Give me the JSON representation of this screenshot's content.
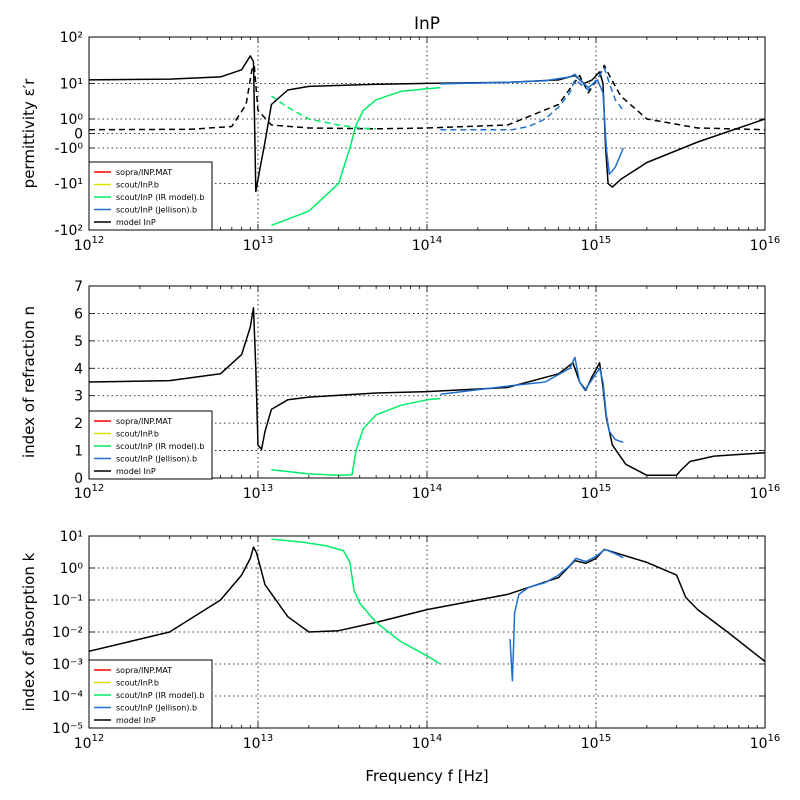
{
  "title": "InP",
  "xlabel": "Frequency f [Hz]",
  "x_ticks": [
    {
      "base": "10",
      "exp": "12"
    },
    {
      "base": "10",
      "exp": "13"
    },
    {
      "base": "10",
      "exp": "14"
    },
    {
      "base": "10",
      "exp": "15"
    },
    {
      "base": "10",
      "exp": "16"
    }
  ],
  "colors": {
    "sopra": "#ff0000",
    "scout_b": "#dddd00",
    "scout_ir": "#00ee66",
    "scout_jellison": "#1f6fd0",
    "model": "#000000"
  },
  "legend": [
    {
      "label": "sopra/INP.MAT",
      "color": "#ff0000"
    },
    {
      "label": "scout/InP.b",
      "color": "#dddd00"
    },
    {
      "label": "scout/InP (IR model).b",
      "color": "#00ee66"
    },
    {
      "label": "scout/InP (Jellison).b",
      "color": "#1f6fd0"
    },
    {
      "label": "model InP",
      "color": "#000000"
    }
  ],
  "chart_data": [
    {
      "type": "line",
      "ylabel": "permittivity ε′r",
      "x_scale": "log",
      "y_scale": "symlog",
      "xlim": [
        1000000000000.0,
        1e+16
      ],
      "ylim": [
        -100,
        100
      ],
      "y_tick_labels": [
        "10²",
        "10¹",
        "10⁰",
        "0",
        "-10⁰",
        "-10¹",
        "-10²"
      ],
      "legend_position": "lower-left",
      "grid": true,
      "series": [
        {
          "name": "model InP",
          "color": "#000000",
          "style": "solid",
          "x": [
            1000000000000.0,
            3000000000000.0,
            6000000000000.0,
            8000000000000.0,
            9000000000000.0,
            9400000000000.0,
            9700000000000.0,
            10200000000000.0,
            11000000000000.0,
            12000000000000.0,
            15000000000000.0,
            20000000000000.0,
            50000000000000.0,
            100000000000000.0,
            300000000000000.0,
            600000000000000.0,
            750000000000000.0,
            850000000000000.0,
            950000000000000.0,
            1050000000000000.0,
            1100000000000000.0,
            1140000000000000.0,
            1180000000000000.0,
            1250000000000000.0,
            1400000000000000.0,
            2000000000000000.0,
            4000000000000000.0,
            1e+16
          ],
          "y": [
            12,
            12.5,
            14,
            20,
            40,
            30,
            -15,
            -5,
            -0.5,
            3,
            7,
            8.5,
            9.5,
            10,
            10.5,
            12,
            15,
            10,
            12,
            18,
            10,
            -1,
            -10,
            -12,
            -8,
            -3,
            -0.5,
            1
          ]
        },
        {
          "name": "model InP (ε″)",
          "color": "#000000",
          "style": "dashed",
          "x": [
            1000000000000.0,
            4000000000000.0,
            7000000000000.0,
            8500000000000.0,
            9200000000000.0,
            9500000000000.0,
            10000000000000.0,
            12000000000000.0,
            20000000000000.0,
            50000000000000.0,
            100000000000000.0,
            300000000000000.0,
            600000000000000.0,
            800000000000000.0,
            900000000000000.0,
            1050000000000000.0,
            1120000000000000.0,
            1200000000000000.0,
            1400000000000000.0,
            2000000000000000.0,
            4000000000000000.0,
            1e+16
          ],
          "y": [
            0.2,
            0.22,
            0.4,
            3,
            20,
            25,
            2,
            0.5,
            0.3,
            0.25,
            0.3,
            0.5,
            3,
            15,
            6,
            15,
            25,
            15,
            5,
            1,
            0.3,
            0.2
          ]
        },
        {
          "name": "scout/InP (IR model).b",
          "color": "#00ee66",
          "style": "solid",
          "x": [
            12000000000000.0,
            20000000000000.0,
            30000000000000.0,
            35000000000000.0,
            38000000000000.0,
            42000000000000.0,
            50000000000000.0,
            70000000000000.0,
            100000000000000.0,
            120000000000000.0
          ],
          "y": [
            -80,
            -40,
            -10,
            -1,
            0.5,
            2,
            4,
            6.5,
            7.5,
            8
          ]
        },
        {
          "name": "scout/InP (IR model).b (ε″)",
          "color": "#00ee66",
          "style": "dashed",
          "x": [
            12000000000000.0,
            15000000000000.0,
            20000000000000.0,
            30000000000000.0,
            40000000000000.0,
            50000000000000.0
          ],
          "y": [
            5,
            2.5,
            1,
            0.5,
            0.3,
            0.25
          ]
        },
        {
          "name": "scout/InP (Jellison).b",
          "color": "#1f6fd0",
          "style": "solid",
          "x": [
            120000000000000.0,
            300000000000000.0,
            500000000000000.0,
            700000000000000.0,
            750000000000000.0,
            800000000000000.0,
            900000000000000.0,
            1020000000000000.0,
            1100000000000000.0,
            1150000000000000.0,
            1200000000000000.0,
            1300000000000000.0,
            1450000000000000.0
          ],
          "y": [
            9.7,
            10.5,
            11.5,
            14,
            16,
            12,
            8,
            12,
            6,
            -1,
            -6,
            -4,
            -1
          ]
        },
        {
          "name": "scout/InP (Jellison).b (ε″)",
          "color": "#1f6fd0",
          "style": "dashed",
          "x": [
            120000000000000.0,
            320000000000000.0,
            400000000000000.0,
            500000000000000.0,
            600000000000000.0,
            700000000000000.0,
            750000000000000.0,
            800000000000000.0,
            900000000000000.0,
            1050000000000000.0,
            1120000000000000.0,
            1200000000000000.0,
            1300000000000000.0,
            1450000000000000.0
          ],
          "y": [
            0.2,
            0.2,
            0.4,
            1,
            2.5,
            6,
            12,
            10,
            7,
            15,
            22,
            10,
            4,
            2
          ]
        }
      ]
    },
    {
      "type": "line",
      "ylabel": "index of refraction n",
      "x_scale": "log",
      "y_scale": "linear",
      "xlim": [
        1000000000000.0,
        1e+16
      ],
      "ylim": [
        0,
        7
      ],
      "y_ticks": [
        0,
        1,
        2,
        3,
        4,
        5,
        6,
        7
      ],
      "legend_position": "lower-left",
      "grid": true,
      "series": [
        {
          "name": "model InP",
          "color": "#000000",
          "style": "solid",
          "x": [
            1000000000000.0,
            3000000000000.0,
            6000000000000.0,
            8000000000000.0,
            9000000000000.0,
            9400000000000.0,
            9700000000000.0,
            10000000000000.0,
            10500000000000.0,
            11000000000000.0,
            12000000000000.0,
            15000000000000.0,
            20000000000000.0,
            50000000000000.0,
            100000000000000.0,
            300000000000000.0,
            600000000000000.0,
            730000000000000.0,
            800000000000000.0,
            870000000000000.0,
            950000000000000.0,
            1050000000000000.0,
            1100000000000000.0,
            1150000000000000.0,
            1250000000000000.0,
            1500000000000000.0,
            2000000000000000.0,
            3000000000000000.0,
            3200000000000000.0,
            3600000000000000.0,
            5000000000000000.0,
            1e+16
          ],
          "y": [
            3.5,
            3.55,
            3.8,
            4.5,
            5.5,
            6.2,
            4,
            1.2,
            1.05,
            1.7,
            2.5,
            2.85,
            2.95,
            3.1,
            3.15,
            3.3,
            3.8,
            4.2,
            3.5,
            3.2,
            3.7,
            4.2,
            3.3,
            2.2,
            1.2,
            0.5,
            0.1,
            0.1,
            0.3,
            0.6,
            0.8,
            0.92
          ]
        },
        {
          "name": "scout/InP (IR model).b",
          "color": "#00ee66",
          "style": "solid",
          "x": [
            12000000000000.0,
            20000000000000.0,
            30000000000000.0,
            36000000000000.0,
            38000000000000.0,
            42000000000000.0,
            50000000000000.0,
            70000000000000.0,
            100000000000000.0,
            120000000000000.0
          ],
          "y": [
            0.3,
            0.15,
            0.1,
            0.12,
            1,
            1.8,
            2.3,
            2.65,
            2.85,
            2.9
          ]
        },
        {
          "name": "scout/InP (Jellison).b",
          "color": "#1f6fd0",
          "style": "solid",
          "x": [
            120000000000000.0,
            300000000000000.0,
            500000000000000.0,
            700000000000000.0,
            750000000000000.0,
            800000000000000.0,
            860000000000000.0,
            950000000000000.0,
            1050000000000000.0,
            1100000000000000.0,
            1150000000000000.0,
            1200000000000000.0,
            1300000000000000.0,
            1450000000000000.0
          ],
          "y": [
            3.05,
            3.35,
            3.5,
            4.0,
            4.4,
            3.5,
            3.2,
            3.6,
            4.0,
            3.5,
            2.3,
            1.7,
            1.4,
            1.3
          ]
        }
      ]
    },
    {
      "type": "line",
      "ylabel": "index of absorption k",
      "x_scale": "log",
      "y_scale": "log",
      "xlim": [
        1000000000000.0,
        1e+16
      ],
      "ylim": [
        1e-05,
        10
      ],
      "y_tick_labels": [
        "10¹",
        "10⁰",
        "10⁻¹",
        "10⁻²",
        "10⁻³",
        "10⁻⁴",
        "10⁻⁵"
      ],
      "legend_position": "lower-left",
      "grid": true,
      "series": [
        {
          "name": "model InP",
          "color": "#000000",
          "style": "solid",
          "x": [
            1000000000000.0,
            3000000000000.0,
            6000000000000.0,
            8000000000000.0,
            9000000000000.0,
            9400000000000.0,
            9800000000000.0,
            11000000000000.0,
            15000000000000.0,
            20000000000000.0,
            30000000000000.0,
            50000000000000.0,
            100000000000000.0,
            300000000000000.0,
            600000000000000.0,
            750000000000000.0,
            870000000000000.0,
            1000000000000000.0,
            1120000000000000.0,
            1300000000000000.0,
            2000000000000000.0,
            3000000000000000.0,
            3400000000000000.0,
            4000000000000000.0,
            6000000000000000.0,
            1e+16
          ],
          "y": [
            0.0025,
            0.01,
            0.1,
            0.6,
            2,
            4.5,
            3,
            0.3,
            0.03,
            0.01,
            0.011,
            0.02,
            0.05,
            0.15,
            0.5,
            1.7,
            1.4,
            2,
            3.8,
            3,
            1.5,
            0.6,
            0.12,
            0.05,
            0.01,
            0.0012
          ]
        },
        {
          "name": "scout/InP (IR model).b",
          "color": "#00ee66",
          "style": "solid",
          "x": [
            12000000000000.0,
            18000000000000.0,
            25000000000000.0,
            32000000000000.0,
            35000000000000.0,
            37000000000000.0,
            40000000000000.0,
            50000000000000.0,
            70000000000000.0,
            100000000000000.0,
            120000000000000.0
          ],
          "y": [
            8,
            6.5,
            5,
            3.5,
            1.5,
            0.2,
            0.08,
            0.02,
            0.005,
            0.0018,
            0.001
          ]
        },
        {
          "name": "scout/InP (Jellison).b",
          "color": "#1f6fd0",
          "style": "solid",
          "x": [
            310000000000000.0,
            320000000000000.0,
            325000000000000.0,
            330000000000000.0,
            350000000000000.0,
            400000000000000.0,
            500000000000000.0,
            600000000000000.0,
            700000000000000.0,
            760000000000000.0,
            870000000000000.0,
            1000000000000000.0,
            1130000000000000.0,
            1300000000000000.0,
            1450000000000000.0
          ],
          "y": [
            0.006,
            0.0003,
            0.003,
            0.04,
            0.15,
            0.25,
            0.35,
            0.6,
            1.2,
            2,
            1.6,
            2.3,
            3.8,
            2.8,
            2.1
          ]
        }
      ]
    }
  ]
}
